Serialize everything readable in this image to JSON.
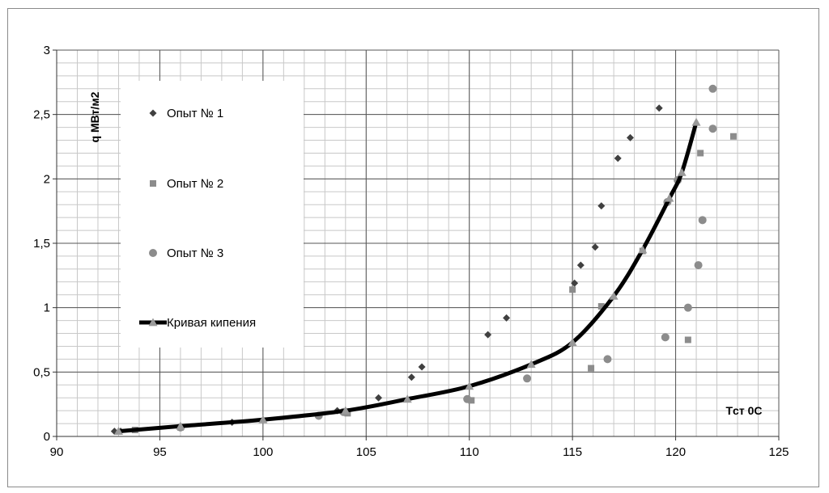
{
  "chart_data": {
    "type": "scatter",
    "title": "",
    "xlabel": "Tст 0C",
    "ylabel": "q МВт/м2",
    "xlim": [
      90,
      125
    ],
    "ylim": [
      0,
      3
    ],
    "xticks": [
      90,
      95,
      100,
      105,
      110,
      115,
      120,
      125
    ],
    "yticks": [
      0,
      0.5,
      1,
      1.5,
      2,
      2.5,
      3
    ],
    "xtick_labels": [
      "90",
      "95",
      "100",
      "105",
      "110",
      "115",
      "120",
      "125"
    ],
    "ytick_labels": [
      "0",
      "0,5",
      "1",
      "1,5",
      "2",
      "2,5",
      "3"
    ],
    "grid": true,
    "legend_position": "left-inside",
    "series": [
      {
        "name": "Опыт № 1",
        "marker": "diamond",
        "color": "#404040",
        "points": [
          [
            92.8,
            0.04
          ],
          [
            93.1,
            0.04
          ],
          [
            98.5,
            0.11
          ],
          [
            103.6,
            0.2
          ],
          [
            105.6,
            0.3
          ],
          [
            107.2,
            0.46
          ],
          [
            107.7,
            0.54
          ],
          [
            110.9,
            0.79
          ],
          [
            111.8,
            0.92
          ],
          [
            115.1,
            1.19
          ],
          [
            115.4,
            1.33
          ],
          [
            116.1,
            1.47
          ],
          [
            116.4,
            1.79
          ],
          [
            117.2,
            2.16
          ],
          [
            117.8,
            2.32
          ],
          [
            119.2,
            2.55
          ]
        ]
      },
      {
        "name": "Опыт № 2",
        "marker": "square",
        "color": "#8c8c8c",
        "points": [
          [
            93.8,
            0.05
          ],
          [
            96.0,
            0.07
          ],
          [
            104.1,
            0.18
          ],
          [
            110.1,
            0.28
          ],
          [
            115.0,
            1.14
          ],
          [
            115.9,
            0.53
          ],
          [
            116.4,
            1.01
          ],
          [
            118.4,
            1.44
          ],
          [
            120.6,
            0.75
          ],
          [
            121.2,
            2.2
          ],
          [
            122.8,
            2.33
          ]
        ]
      },
      {
        "name": "Опыт № 3",
        "marker": "circle",
        "color": "#8c8c8c",
        "points": [
          [
            96.0,
            0.07
          ],
          [
            102.7,
            0.16
          ],
          [
            103.9,
            0.19
          ],
          [
            109.9,
            0.29
          ],
          [
            112.8,
            0.45
          ],
          [
            116.7,
            0.6
          ],
          [
            119.5,
            0.77
          ],
          [
            119.6,
            1.82
          ],
          [
            120.1,
            1.99
          ],
          [
            120.6,
            1.0
          ],
          [
            121.1,
            1.33
          ],
          [
            121.3,
            1.68
          ],
          [
            121.8,
            2.7
          ],
          [
            121.8,
            2.39
          ]
        ]
      },
      {
        "name": "Кривая кипения",
        "marker": "triangle",
        "line": true,
        "color": "#000000",
        "marker_color": "#9a9a9a",
        "points": [
          [
            93.0,
            0.04
          ],
          [
            96.0,
            0.08
          ],
          [
            100.0,
            0.13
          ],
          [
            104.0,
            0.2
          ],
          [
            107.0,
            0.29
          ],
          [
            110.0,
            0.39
          ],
          [
            113.0,
            0.56
          ],
          [
            115.0,
            0.73
          ],
          [
            117.0,
            1.09
          ],
          [
            118.4,
            1.45
          ],
          [
            119.7,
            1.85
          ],
          [
            120.3,
            2.05
          ],
          [
            121.0,
            2.44
          ]
        ]
      }
    ]
  }
}
